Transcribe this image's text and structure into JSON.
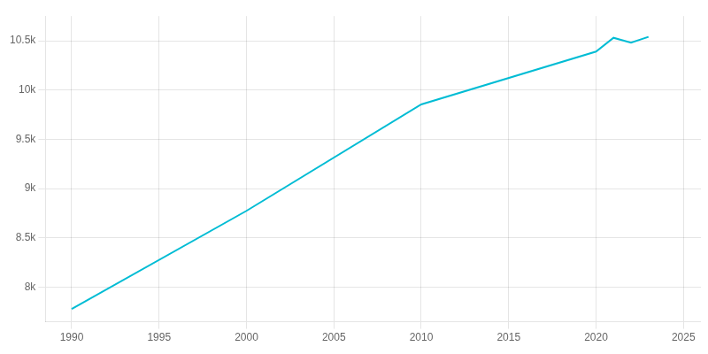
{
  "chart_data": {
    "type": "line",
    "x": [
      1990,
      2000,
      2010,
      2020,
      2021,
      2022,
      2023
    ],
    "values": [
      7780,
      8775,
      9855,
      10390,
      10530,
      10480,
      10540
    ],
    "color": "#00bcd4",
    "xlim": [
      1988.5,
      2026
    ],
    "ylim": [
      7650,
      10750
    ],
    "xticks": [
      1990,
      1995,
      2000,
      2005,
      2010,
      2015,
      2020,
      2025
    ],
    "yticks": [
      {
        "value": 8000,
        "label": "8k"
      },
      {
        "value": 8500,
        "label": "8.5k"
      },
      {
        "value": 9000,
        "label": "9k"
      },
      {
        "value": 9500,
        "label": "9.5k"
      },
      {
        "value": 10000,
        "label": "10k"
      },
      {
        "value": 10500,
        "label": "10.5k"
      }
    ],
    "grid": true
  }
}
